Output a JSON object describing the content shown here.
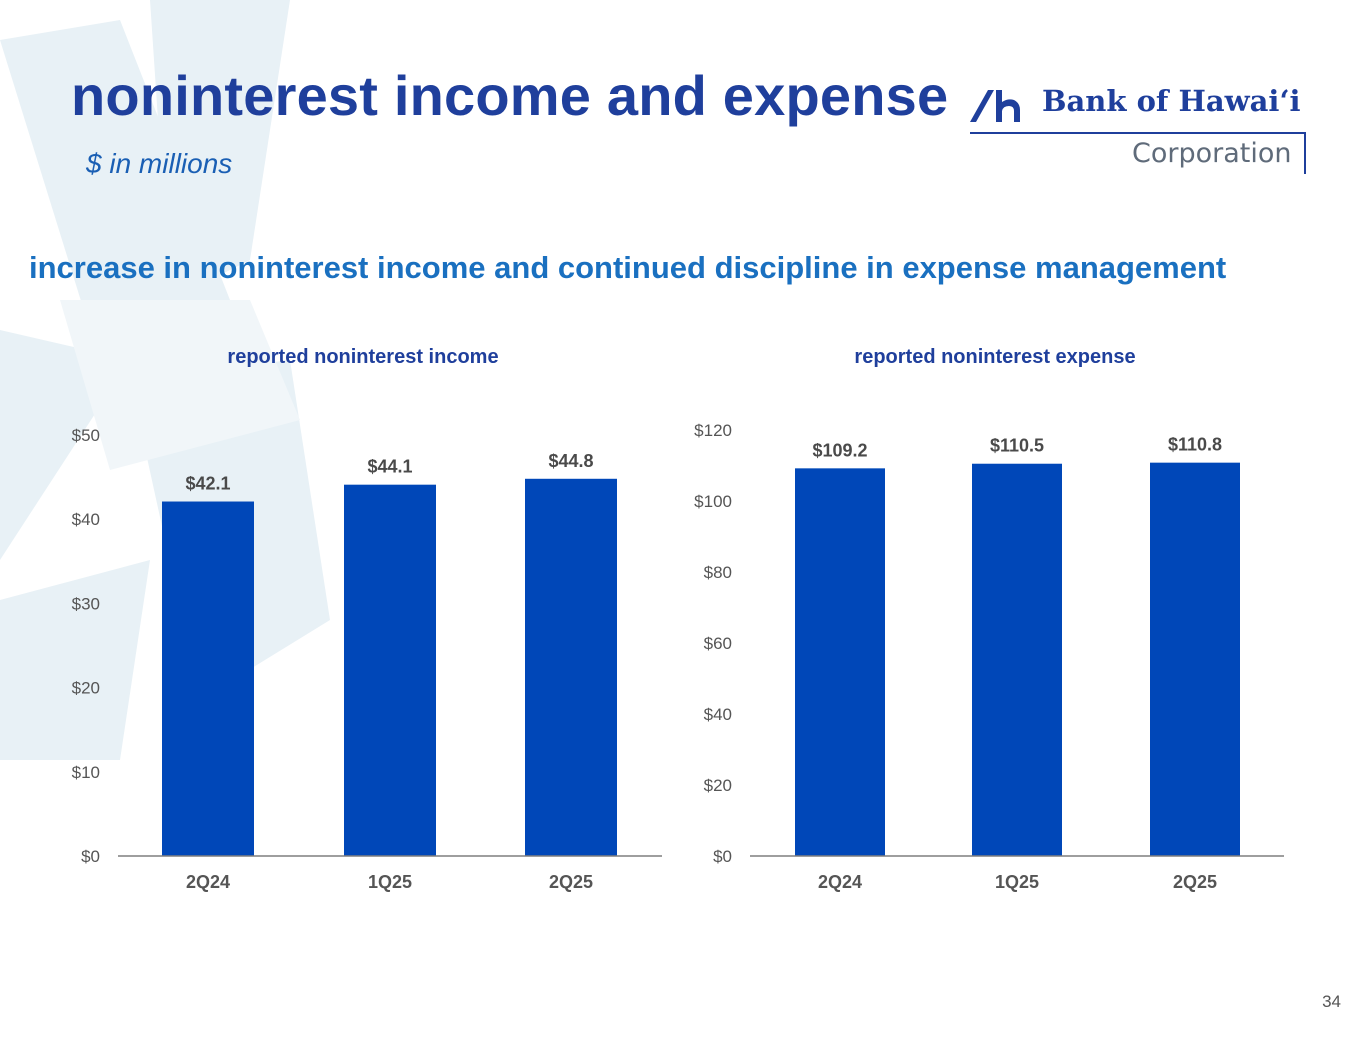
{
  "page": {
    "title": "noninterest income and expense",
    "subtitle": "$ in millions",
    "headline": "increase in noninterest income and continued discipline in expense management",
    "page_number": "34"
  },
  "logo": {
    "name": "Bank of Hawaiʻi",
    "sub": "Corporation",
    "icon": "bank-of-hawaii-mark-icon"
  },
  "colors": {
    "bar": "#0047b8",
    "title": "#1f3f9c",
    "headline": "#1a70c0",
    "axis_text": "#555555",
    "axis_line": "#7f7f7f"
  },
  "chart_data": [
    {
      "type": "bar",
      "title": "reported noninterest income",
      "categories": [
        "2Q24",
        "1Q25",
        "2Q25"
      ],
      "values": [
        42.1,
        44.1,
        44.8
      ],
      "data_labels": [
        "$42.1",
        "$44.1",
        "$44.8"
      ],
      "yticks": [
        0,
        10,
        20,
        30,
        40,
        50
      ],
      "ytick_labels": [
        "$0",
        "$10",
        "$20",
        "$30",
        "$40",
        "$50"
      ],
      "ylim": [
        0,
        50
      ],
      "grid": false,
      "legend": "none"
    },
    {
      "type": "bar",
      "title": "reported noninterest expense",
      "categories": [
        "2Q24",
        "1Q25",
        "2Q25"
      ],
      "values": [
        109.2,
        110.5,
        110.8
      ],
      "data_labels": [
        "$109.2",
        "$110.5",
        "$110.8"
      ],
      "yticks": [
        0,
        20,
        40,
        60,
        80,
        100,
        120
      ],
      "ytick_labels": [
        "$0",
        "$20",
        "$40",
        "$60",
        "$80",
        "$100",
        "$120"
      ],
      "ylim": [
        0,
        120
      ],
      "grid": false,
      "legend": "none"
    }
  ]
}
